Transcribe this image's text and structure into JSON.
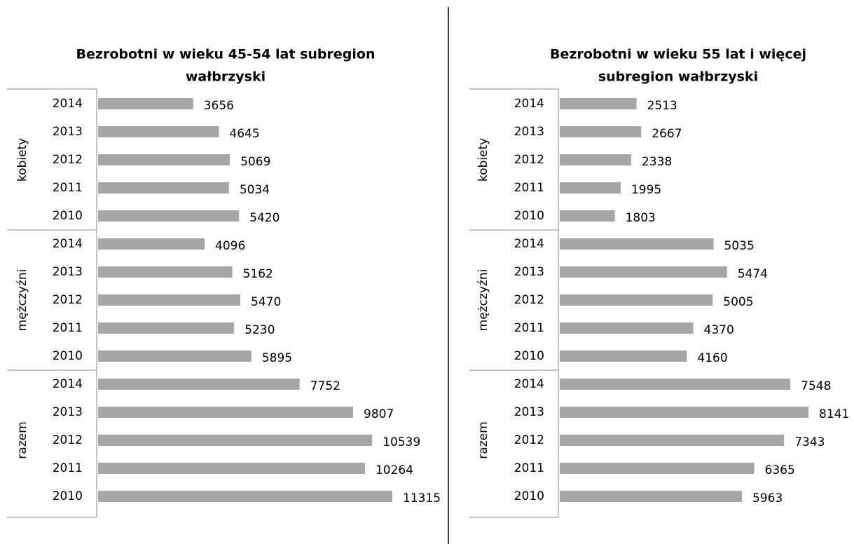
{
  "chart_data": [
    {
      "type": "bar",
      "orientation": "horizontal",
      "color": "#a6a6a6",
      "title": [
        "Bezrobotni w wieku 45-54 lat  subregion",
        "wałbrzyski"
      ],
      "groups": [
        {
          "label": "kobiety",
          "categories": [
            "2014",
            "2013",
            "2012",
            "2011",
            "2010"
          ],
          "values": [
            3656,
            4645,
            5069,
            5034,
            5420
          ]
        },
        {
          "label": "mężczyźni",
          "categories": [
            "2014",
            "2013",
            "2012",
            "2011",
            "2010"
          ],
          "values": [
            4096,
            5162,
            5470,
            5230,
            5895
          ]
        },
        {
          "label": "razem",
          "categories": [
            "2014",
            "2013",
            "2012",
            "2011",
            "2010"
          ],
          "values": [
            7752,
            9807,
            10539,
            10264,
            11315
          ]
        }
      ]
    },
    {
      "type": "bar",
      "orientation": "horizontal",
      "color": "#a6a6a6",
      "title": [
        "Bezrobotni w wieku 55 lat  i więcej",
        "subregion wałbrzyski"
      ],
      "groups": [
        {
          "label": "kobiety",
          "categories": [
            "2014",
            "2013",
            "2012",
            "2011",
            "2010"
          ],
          "values": [
            2513,
            2667,
            2338,
            1995,
            1803
          ]
        },
        {
          "label": "mężczyźni",
          "categories": [
            "2014",
            "2013",
            "2012",
            "2011",
            "2010"
          ],
          "values": [
            5035,
            5474,
            5005,
            4370,
            4160
          ]
        },
        {
          "label": "razem",
          "categories": [
            "2014",
            "2013",
            "2012",
            "2011",
            "2010"
          ],
          "values": [
            7548,
            8141,
            7343,
            6365,
            5963
          ]
        }
      ]
    }
  ]
}
